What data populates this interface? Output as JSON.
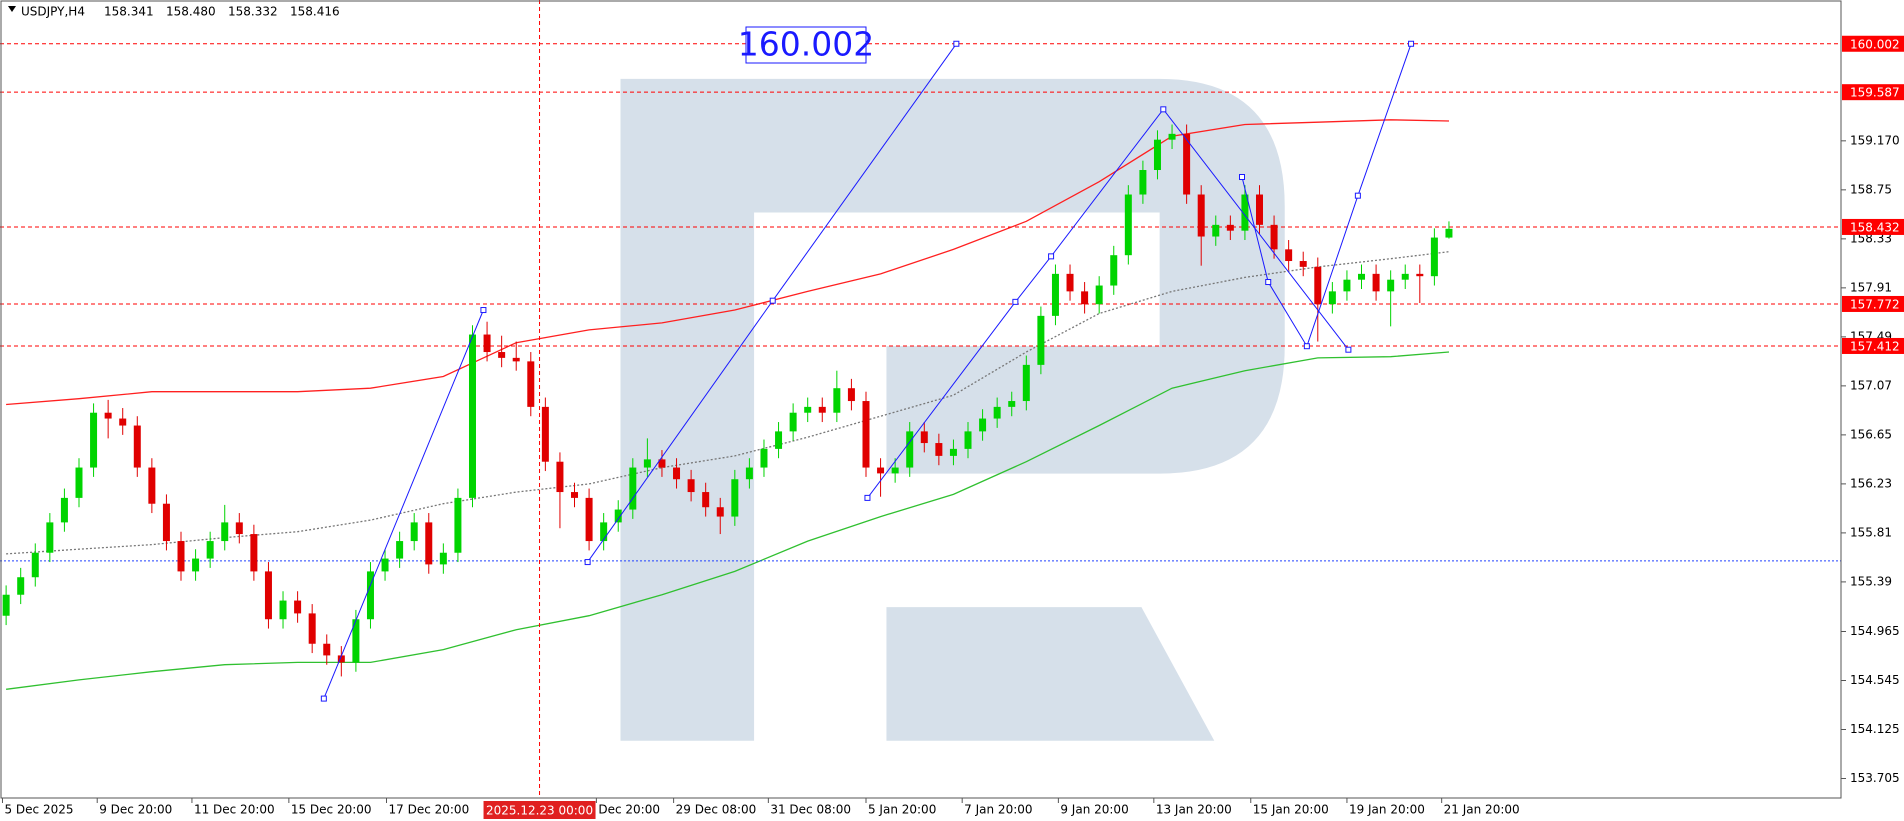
{
  "chart_data": {
    "type": "candlestick",
    "title": "USDJPY,H4",
    "last_value_labels": [
      "158.341",
      "158.480",
      "158.332",
      "158.416"
    ],
    "up_color": "#00d400",
    "down_color": "#e00000",
    "xlim": [
      -0.42,
      125.9
    ],
    "ylim": [
      153.538,
      160.377
    ],
    "yticks": [
      {
        "value": 159.17,
        "label": "159.170"
      },
      158.75,
      158.33,
      157.91,
      157.49,
      157.07,
      156.65,
      156.23,
      155.81,
      155.39,
      154.965,
      154.545,
      154.125,
      153.705
    ],
    "xticks": [
      {
        "value": -0.25,
        "label": "5 Dec 2025"
      },
      {
        "value": 6.25,
        "label": "9 Dec 20:00"
      },
      {
        "value": 12.75,
        "label": "11 Dec 20:00"
      },
      {
        "value": 19.4,
        "label": "15 Dec 20:00"
      },
      {
        "value": 26.1,
        "label": "17 Dec 20:00"
      },
      {
        "value": 40.5,
        "label": "Dec 20:00"
      },
      {
        "value": 45.8,
        "label": "29 Dec 08:00"
      },
      {
        "value": 52.3,
        "label": "31 Dec 08:00"
      },
      {
        "value": 59,
        "label": "5 Jan 20:00"
      },
      {
        "value": 65.6,
        "label": "7 Jan 20:00"
      },
      {
        "value": 72.2,
        "label": "9 Jan 20:00"
      },
      {
        "value": 78.75,
        "label": "13 Jan 20:00"
      },
      {
        "value": 85.4,
        "label": "15 Jan 20:00"
      },
      {
        "value": 92,
        "label": "19 Jan 20:00"
      },
      {
        "value": 98.5,
        "label": "21 Jan 20:00"
      }
    ],
    "crosshair": {
      "x": 36.6,
      "label": "2025.12.23 00:00"
    },
    "candles": [
      [
        155.1,
        155.36,
        155.02,
        155.28
      ],
      [
        155.28,
        155.51,
        155.2,
        155.43
      ],
      [
        155.43,
        155.72,
        155.35,
        155.64
      ],
      [
        155.64,
        155.98,
        155.56,
        155.9
      ],
      [
        155.9,
        156.19,
        155.82,
        156.11
      ],
      [
        156.11,
        156.45,
        156.03,
        156.37
      ],
      [
        156.37,
        156.92,
        156.29,
        156.84
      ],
      [
        156.84,
        156.95,
        156.62,
        156.79
      ],
      [
        156.79,
        156.88,
        156.65,
        156.73
      ],
      [
        156.73,
        156.81,
        156.29,
        156.37
      ],
      [
        156.37,
        156.45,
        155.98,
        156.06
      ],
      [
        156.06,
        156.14,
        155.66,
        155.74
      ],
      [
        155.74,
        155.82,
        155.4,
        155.48
      ],
      [
        155.48,
        155.67,
        155.4,
        155.59
      ],
      [
        155.59,
        155.82,
        155.51,
        155.74
      ],
      [
        155.74,
        156.05,
        155.66,
        155.9
      ],
      [
        155.9,
        155.98,
        155.72,
        155.8
      ],
      [
        155.8,
        155.88,
        155.4,
        155.48
      ],
      [
        155.48,
        155.56,
        154.99,
        155.07
      ],
      [
        155.07,
        155.31,
        154.99,
        155.23
      ],
      [
        155.23,
        155.31,
        155.04,
        155.12
      ],
      [
        155.12,
        155.2,
        154.78,
        154.86
      ],
      [
        154.86,
        154.94,
        154.68,
        154.76
      ],
      [
        154.76,
        154.84,
        154.58,
        154.7
      ],
      [
        154.7,
        155.15,
        154.62,
        155.07
      ],
      [
        155.07,
        155.56,
        154.99,
        155.48
      ],
      [
        155.48,
        155.67,
        155.4,
        155.59
      ],
      [
        155.59,
        155.82,
        155.51,
        155.74
      ],
      [
        155.74,
        155.98,
        155.66,
        155.9
      ],
      [
        155.9,
        155.98,
        155.46,
        155.54
      ],
      [
        155.54,
        155.72,
        155.46,
        155.64
      ],
      [
        155.64,
        156.19,
        155.56,
        156.11
      ],
      [
        156.11,
        157.59,
        156.03,
        157.51
      ],
      [
        157.51,
        157.62,
        157.28,
        157.36
      ],
      [
        157.36,
        157.5,
        157.23,
        157.31
      ],
      [
        157.31,
        157.45,
        157.2,
        157.28
      ],
      [
        157.28,
        157.36,
        156.81,
        156.89
      ],
      [
        156.89,
        156.97,
        156.34,
        156.42
      ],
      [
        156.42,
        156.5,
        155.85,
        156.16
      ],
      [
        156.16,
        156.24,
        156.03,
        156.11
      ],
      [
        156.11,
        156.19,
        155.66,
        155.74
      ],
      [
        155.74,
        155.98,
        155.66,
        155.9
      ],
      [
        155.9,
        156.09,
        155.82,
        156.01
      ],
      [
        156.01,
        156.45,
        155.93,
        156.37
      ],
      [
        156.37,
        156.62,
        156.29,
        156.44
      ],
      [
        156.44,
        156.52,
        156.29,
        156.37
      ],
      [
        156.37,
        156.45,
        156.19,
        156.27
      ],
      [
        156.27,
        156.35,
        156.08,
        156.16
      ],
      [
        156.16,
        156.24,
        155.95,
        156.03
      ],
      [
        156.03,
        156.11,
        155.8,
        155.95
      ],
      [
        155.95,
        156.35,
        155.87,
        156.27
      ],
      [
        156.27,
        156.45,
        156.19,
        156.37
      ],
      [
        156.37,
        156.61,
        156.29,
        156.53
      ],
      [
        156.53,
        156.76,
        156.45,
        156.68
      ],
      [
        156.68,
        156.92,
        156.6,
        156.84
      ],
      [
        156.84,
        156.97,
        156.76,
        156.89
      ],
      [
        156.89,
        156.97,
        156.76,
        156.84
      ],
      [
        156.84,
        157.2,
        156.76,
        157.05
      ],
      [
        157.05,
        157.13,
        156.86,
        156.94
      ],
      [
        156.94,
        157.02,
        156.29,
        156.37
      ],
      [
        156.37,
        156.45,
        156.12,
        156.32
      ],
      [
        156.32,
        156.45,
        156.24,
        156.37
      ],
      [
        156.37,
        156.76,
        156.29,
        156.68
      ],
      [
        156.68,
        156.76,
        156.5,
        156.58
      ],
      [
        156.58,
        156.66,
        156.39,
        156.47
      ],
      [
        156.47,
        156.61,
        156.39,
        156.53
      ],
      [
        156.53,
        156.76,
        156.45,
        156.68
      ],
      [
        156.68,
        156.87,
        156.6,
        156.79
      ],
      [
        156.79,
        156.97,
        156.71,
        156.89
      ],
      [
        156.89,
        157.02,
        156.81,
        156.94
      ],
      [
        156.94,
        157.33,
        156.86,
        157.25
      ],
      [
        157.25,
        157.75,
        157.17,
        157.67
      ],
      [
        157.67,
        158.11,
        157.59,
        158.03
      ],
      [
        158.03,
        158.11,
        157.8,
        157.88
      ],
      [
        157.88,
        157.96,
        157.69,
        157.77
      ],
      [
        157.77,
        158.01,
        157.69,
        157.93
      ],
      [
        157.93,
        158.27,
        157.85,
        158.19
      ],
      [
        158.19,
        158.79,
        158.11,
        158.71
      ],
      [
        158.71,
        159.0,
        158.63,
        158.92
      ],
      [
        158.92,
        159.26,
        158.84,
        159.18
      ],
      [
        159.18,
        159.31,
        159.1,
        159.23
      ],
      [
        159.23,
        159.31,
        158.63,
        158.71
      ],
      [
        158.71,
        158.79,
        158.1,
        158.35
      ],
      [
        158.35,
        158.53,
        158.27,
        158.45
      ],
      [
        158.45,
        158.53,
        158.32,
        158.4
      ],
      [
        158.4,
        158.79,
        158.32,
        158.71
      ],
      [
        158.71,
        158.79,
        158.37,
        158.45
      ],
      [
        158.45,
        158.53,
        158.16,
        158.24
      ],
      [
        158.24,
        158.32,
        158.06,
        158.14
      ],
      [
        158.14,
        158.22,
        158.01,
        158.09
      ],
      [
        158.09,
        158.17,
        157.45,
        157.77
      ],
      [
        157.77,
        157.96,
        157.69,
        157.88
      ],
      [
        157.88,
        158.06,
        157.8,
        157.98
      ],
      [
        157.98,
        158.11,
        157.9,
        158.03
      ],
      [
        158.03,
        158.11,
        157.8,
        157.88
      ],
      [
        157.88,
        158.06,
        157.58,
        157.98
      ],
      [
        157.98,
        158.11,
        157.9,
        158.03
      ],
      [
        158.03,
        158.11,
        157.78,
        158.01
      ],
      [
        158.01,
        158.42,
        157.93,
        158.341
      ],
      [
        158.341,
        158.48,
        158.332,
        158.416
      ]
    ],
    "lines": [
      {
        "color": "#ff2020",
        "style": "solid",
        "x": [
          0,
          5,
          10,
          15,
          20,
          25,
          30,
          35,
          40,
          45,
          50,
          55,
          60,
          65,
          70,
          75,
          80,
          85,
          90,
          95,
          99
        ],
        "values": [
          156.91,
          156.96,
          157.02,
          157.02,
          157.02,
          157.05,
          157.15,
          157.44,
          157.55,
          157.61,
          157.72,
          157.88,
          158.03,
          158.24,
          158.48,
          158.82,
          159.21,
          159.31,
          159.33,
          159.35,
          159.34
        ]
      },
      {
        "color": "#30c030",
        "style": "solid",
        "x": [
          0,
          5,
          10,
          15,
          20,
          25,
          30,
          35,
          40,
          45,
          50,
          55,
          60,
          65,
          70,
          75,
          80,
          85,
          90,
          95,
          99
        ],
        "values": [
          154.47,
          154.55,
          154.62,
          154.68,
          154.7,
          154.7,
          154.81,
          154.98,
          155.1,
          155.28,
          155.48,
          155.74,
          155.95,
          156.14,
          156.42,
          156.73,
          157.05,
          157.2,
          157.31,
          157.32,
          157.36
        ]
      },
      {
        "color": "#777777",
        "style": "dotted",
        "x": [
          0,
          5,
          10,
          15,
          20,
          25,
          30,
          35,
          40,
          45,
          50,
          55,
          60,
          65,
          70,
          75,
          80,
          85,
          90,
          95,
          99
        ],
        "values": [
          155.63,
          155.67,
          155.71,
          155.77,
          155.82,
          155.92,
          156.06,
          156.16,
          156.23,
          156.37,
          156.47,
          156.63,
          156.81,
          156.99,
          157.36,
          157.69,
          157.88,
          158.0,
          158.09,
          158.16,
          158.22
        ]
      }
    ],
    "trendlines": [
      {
        "color": "#1a1aff",
        "x": [
          21.8,
          32.75
        ],
        "values": [
          154.39,
          157.72
        ]
      },
      {
        "color": "#1a1aff",
        "x": [
          39.9,
          52.6,
          65.2
        ],
        "values": [
          155.56,
          157.8,
          160.002
        ]
      },
      {
        "color": "#1a1aff",
        "x": [
          59.1,
          69.25,
          71.7,
          79.4,
          92.1
        ],
        "values": [
          156.11,
          157.79,
          158.18,
          159.44,
          157.38
        ]
      },
      {
        "color": "#1a1aff",
        "x": [
          84.8,
          86.6,
          89.25,
          92.75,
          96.4
        ],
        "values": [
          158.86,
          157.96,
          157.41,
          158.7,
          160.002
        ]
      }
    ],
    "levels": [
      {
        "value": 160.002,
        "color": "#ff0000",
        "style": "dashed",
        "label_box": true
      },
      {
        "value": 159.587,
        "color": "#ff0000",
        "style": "dashed",
        "label_box": true
      },
      {
        "value": 158.432,
        "color": "#ff0000",
        "style": "dashed",
        "label_box": true
      },
      {
        "value": 157.772,
        "color": "#ff0000",
        "style": "dashed",
        "label_box": true
      },
      {
        "value": 157.412,
        "color": "#ff0000",
        "style": "dashed",
        "label_box": true
      },
      {
        "value": 155.57,
        "color": "#2040ff",
        "style": "dotted",
        "label_box": false
      }
    ]
  }
}
